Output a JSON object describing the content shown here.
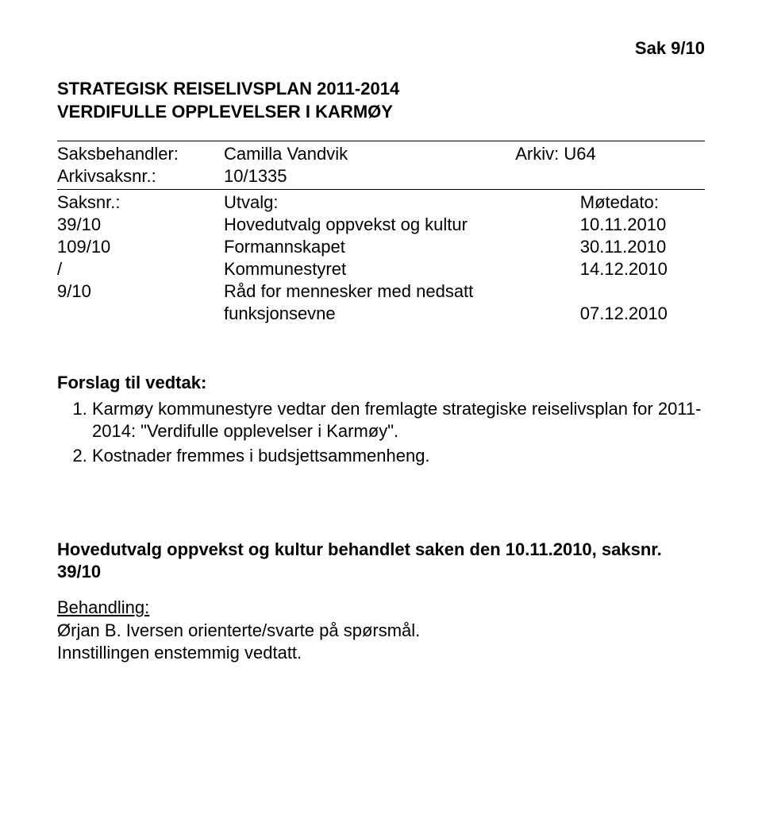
{
  "header": {
    "sak": "Sak  9/10"
  },
  "title_line1": "STRATEGISK REISELIVSPLAN 2011-2014",
  "title_line2": "VERDIFULLE OPPLEVELSER I KARMØY",
  "meta": {
    "saksbehandler_label": "Saksbehandler:",
    "saksbehandler_value": "Camilla Vandvik",
    "arkiv_label": "Arkiv: U64",
    "arkivsaksnr_label": "Arkivsaksnr.:",
    "arkivsaksnr_value": "10/1335",
    "saksnr_label": "Saksnr.:",
    "utvalg_label": "Utvalg:",
    "motedato_label": "Møtedato:",
    "rows": [
      {
        "saksnr": "39/10",
        "utvalg": "Hovedutvalg oppvekst og kultur",
        "dato": "10.11.2010"
      },
      {
        "saksnr": "109/10",
        "utvalg": "Formannskapet",
        "dato": "30.11.2010"
      },
      {
        "saksnr": "/",
        "utvalg": "Kommunestyret",
        "dato": "14.12.2010"
      },
      {
        "saksnr": "9/10",
        "utvalg_line1": "Råd for mennesker med nedsatt",
        "utvalg_line2": "funksjonsevne",
        "dato": "07.12.2010"
      }
    ]
  },
  "forslag": {
    "heading": "Forslag til vedtak:",
    "items": [
      "Karmøy kommunestyre vedtar den fremlagte strategiske reiselivsplan for 2011-2014: \"Verdifulle opplevelser i Karmøy\".",
      "Kostnader fremmes i budsjettsammenheng."
    ]
  },
  "behandlet": {
    "heading": "Hovedutvalg oppvekst og kultur behandlet saken den 10.11.2010, saksnr. 39/10",
    "label": "Behandling:",
    "body_line1": "Ørjan B. Iversen orienterte/svarte på spørsmål.",
    "body_line2": "Innstillingen enstemmig vedtatt."
  }
}
